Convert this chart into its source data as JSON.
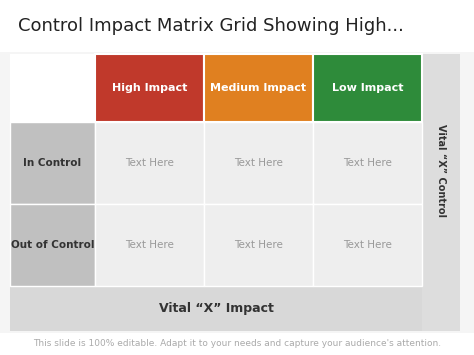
{
  "title": "Control Impact Matrix Grid Showing High...",
  "title_fontsize": 13,
  "background_color": "#f5f5f5",
  "footer_text": "This slide is 100% editable. Adapt it to your needs and capture your audience's attention.",
  "footer_fontsize": 6.5,
  "bottom_label": "Vital “X” Impact",
  "right_label": "Vital “X” Control",
  "col_headers": [
    "High Impact",
    "Medium Impact",
    "Low Impact"
  ],
  "col_header_colors": [
    "#c0392b",
    "#e08020",
    "#2e8b3a"
  ],
  "col_header_text_color": "#ffffff",
  "row_headers": [
    "In Control",
    "Out of Control"
  ],
  "row_header_bg": "#c0c0c0",
  "row_header_text_color": "#333333",
  "cell_bg": "#eeeeee",
  "cell_text": "Text Here",
  "cell_text_color": "#999999",
  "bottom_bar_bg": "#d8d8d8",
  "right_bar_bg": "#dddddd",
  "title_bg": "#ffffff",
  "matrix_bg": "#dddddd"
}
